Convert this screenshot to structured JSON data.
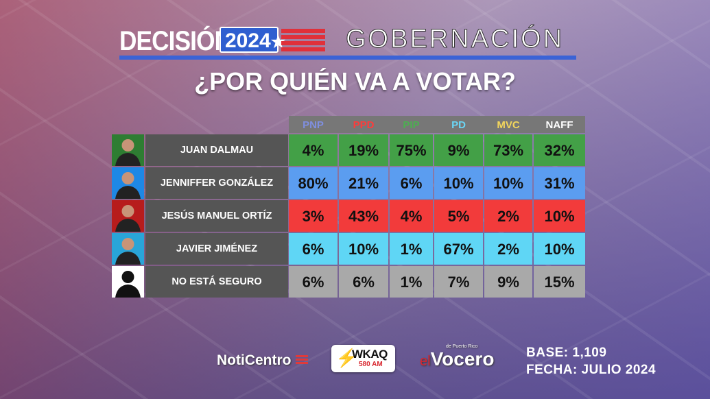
{
  "header": {
    "brand": "DECISIÓN",
    "year": "2024",
    "subject": "GOBERNACIÓN",
    "question": "¿POR QUIÉN VA A VOTAR?"
  },
  "colors": {
    "PNP": "#7f8fe0",
    "PPD": "#ff3b3b",
    "PIP": "#4caf50",
    "PD": "#6ad6f5",
    "MVC": "#f2d65c",
    "NAFF": "#ffffff",
    "row_dalmau": "#43a047",
    "row_gonzalez": "#5b9df0",
    "row_ortiz": "#f23b3b",
    "row_jimenez": "#5fd6f5",
    "row_unsure": "#a9a9a9"
  },
  "chart_data": {
    "type": "table",
    "columns": [
      "PNP",
      "PPD",
      "PIP",
      "PD",
      "MVC",
      "NAFF"
    ],
    "rows": [
      {
        "candidate": "JUAN DALMAU",
        "values": [
          "4%",
          "19%",
          "75%",
          "9%",
          "73%",
          "32%"
        ]
      },
      {
        "candidate": "JENNIFFER GONZÁLEZ",
        "values": [
          "80%",
          "21%",
          "6%",
          "10%",
          "10%",
          "31%"
        ]
      },
      {
        "candidate": "JESÚS MANUEL ORTÍZ",
        "values": [
          "3%",
          "43%",
          "4%",
          "5%",
          "2%",
          "10%"
        ]
      },
      {
        "candidate": "JAVIER JIMÉNEZ",
        "values": [
          "6%",
          "10%",
          "1%",
          "67%",
          "2%",
          "10%"
        ]
      },
      {
        "candidate": "NO ESTÁ SEGURO",
        "values": [
          "6%",
          "6%",
          "1%",
          "7%",
          "9%",
          "15%"
        ]
      }
    ]
  },
  "footer": {
    "noticentro": "NotiCentro",
    "wkaq_call": "WKAQ",
    "wkaq_freq": "580 AM",
    "vocero_prefix": "el",
    "vocero_name": "Vocero",
    "vocero_note": "de Puerto Rico",
    "base": "BASE: 1,109",
    "fecha": "FECHA: JULIO 2024"
  }
}
